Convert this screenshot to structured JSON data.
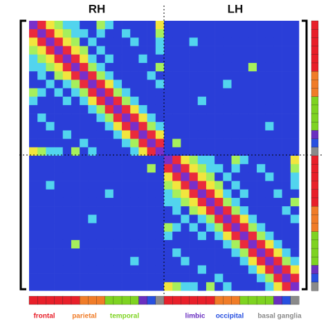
{
  "chart_data": {
    "type": "heatmap",
    "column_groups": [
      "RH",
      "LH"
    ],
    "zlim": [
      0,
      5
    ],
    "colorscale": [
      "#2a3ed8",
      "#52d4ee",
      "#a6ef5c",
      "#f2e53e",
      "#ea2a3c",
      "#7a2fc9"
    ],
    "regions": [
      {
        "name": "frontal",
        "color": "#e8202a"
      },
      {
        "name": "parietal",
        "color": "#f07c28"
      },
      {
        "name": "temporal",
        "color": "#7ed321"
      },
      {
        "name": "limbic",
        "color": "#6a2fc0"
      },
      {
        "name": "occipital",
        "color": "#2850e0"
      },
      {
        "name": "basal ganglia",
        "color": "#8a8a8a"
      }
    ],
    "node_regions": [
      0,
      0,
      0,
      0,
      0,
      0,
      1,
      1,
      1,
      2,
      2,
      2,
      2,
      3,
      4,
      5,
      0,
      0,
      0,
      0,
      0,
      0,
      1,
      1,
      1,
      2,
      2,
      2,
      2,
      3,
      4,
      5
    ],
    "values": [
      [
        5,
        4,
        3,
        2,
        1,
        1,
        0,
        0,
        2,
        1,
        0,
        0,
        0,
        0,
        0,
        3,
        0,
        0,
        0,
        0,
        0,
        0,
        0,
        0,
        0,
        0,
        0,
        0,
        0,
        0,
        0,
        0
      ],
      [
        4,
        5,
        4,
        3,
        2,
        1,
        1,
        0,
        1,
        0,
        0,
        1,
        0,
        0,
        0,
        2,
        0,
        0,
        0,
        0,
        0,
        0,
        0,
        0,
        0,
        0,
        0,
        0,
        0,
        0,
        0,
        0
      ],
      [
        3,
        4,
        5,
        4,
        3,
        2,
        0,
        1,
        0,
        0,
        0,
        0,
        1,
        0,
        0,
        1,
        0,
        0,
        0,
        1,
        0,
        0,
        0,
        0,
        0,
        0,
        0,
        0,
        0,
        0,
        0,
        0
      ],
      [
        2,
        3,
        4,
        5,
        4,
        3,
        2,
        0,
        1,
        0,
        0,
        0,
        0,
        0,
        0,
        1,
        0,
        0,
        0,
        0,
        0,
        0,
        0,
        0,
        0,
        0,
        0,
        0,
        0,
        0,
        0,
        0
      ],
      [
        1,
        2,
        3,
        4,
        5,
        4,
        3,
        1,
        0,
        1,
        0,
        0,
        0,
        1,
        0,
        0,
        0,
        0,
        0,
        0,
        0,
        0,
        0,
        0,
        0,
        0,
        0,
        0,
        0,
        0,
        0,
        0
      ],
      [
        1,
        1,
        2,
        3,
        4,
        5,
        4,
        2,
        1,
        0,
        0,
        0,
        0,
        0,
        0,
        2,
        0,
        0,
        0,
        0,
        0,
        0,
        0,
        0,
        0,
        0,
        2,
        0,
        0,
        0,
        0,
        0
      ],
      [
        0,
        1,
        0,
        2,
        3,
        4,
        5,
        4,
        2,
        1,
        0,
        0,
        0,
        0,
        1,
        0,
        0,
        0,
        0,
        0,
        0,
        0,
        0,
        0,
        0,
        0,
        0,
        0,
        0,
        0,
        0,
        0
      ],
      [
        0,
        0,
        1,
        0,
        1,
        2,
        4,
        5,
        4,
        3,
        1,
        0,
        0,
        0,
        0,
        1,
        0,
        0,
        0,
        0,
        0,
        0,
        0,
        1,
        0,
        0,
        0,
        0,
        0,
        0,
        0,
        0
      ],
      [
        2,
        1,
        0,
        1,
        0,
        1,
        2,
        4,
        5,
        4,
        2,
        1,
        0,
        0,
        0,
        0,
        0,
        0,
        0,
        0,
        0,
        0,
        0,
        0,
        0,
        0,
        0,
        0,
        0,
        0,
        0,
        0
      ],
      [
        1,
        0,
        0,
        0,
        1,
        0,
        1,
        3,
        4,
        5,
        4,
        2,
        1,
        0,
        0,
        0,
        0,
        0,
        0,
        0,
        1,
        0,
        0,
        0,
        0,
        0,
        0,
        0,
        0,
        0,
        0,
        0
      ],
      [
        0,
        0,
        0,
        0,
        0,
        0,
        0,
        1,
        2,
        4,
        5,
        4,
        3,
        1,
        0,
        0,
        0,
        0,
        0,
        0,
        0,
        0,
        0,
        0,
        0,
        0,
        0,
        0,
        0,
        0,
        0,
        0
      ],
      [
        0,
        1,
        0,
        0,
        0,
        0,
        0,
        0,
        1,
        2,
        4,
        5,
        4,
        3,
        1,
        0,
        0,
        0,
        0,
        0,
        0,
        0,
        0,
        0,
        0,
        0,
        0,
        0,
        0,
        0,
        0,
        0
      ],
      [
        0,
        0,
        1,
        0,
        0,
        0,
        0,
        0,
        0,
        1,
        3,
        4,
        5,
        4,
        2,
        1,
        0,
        0,
        0,
        0,
        0,
        0,
        0,
        0,
        0,
        0,
        0,
        0,
        1,
        0,
        0,
        0
      ],
      [
        0,
        0,
        0,
        0,
        1,
        0,
        0,
        0,
        0,
        0,
        1,
        3,
        4,
        5,
        4,
        3,
        0,
        0,
        0,
        0,
        0,
        0,
        0,
        0,
        0,
        0,
        0,
        0,
        0,
        0,
        0,
        0
      ],
      [
        0,
        0,
        0,
        0,
        0,
        0,
        1,
        0,
        0,
        0,
        0,
        1,
        2,
        4,
        5,
        4,
        0,
        2,
        0,
        0,
        0,
        0,
        0,
        0,
        0,
        0,
        0,
        0,
        0,
        0,
        0,
        0
      ],
      [
        3,
        2,
        1,
        1,
        0,
        2,
        0,
        1,
        0,
        0,
        0,
        0,
        1,
        3,
        4,
        5,
        0,
        0,
        0,
        0,
        0,
        0,
        0,
        0,
        0,
        0,
        0,
        0,
        0,
        0,
        0,
        0
      ],
      [
        0,
        0,
        0,
        0,
        0,
        0,
        0,
        0,
        0,
        0,
        0,
        0,
        0,
        0,
        0,
        0,
        5,
        4,
        3,
        2,
        1,
        1,
        0,
        0,
        2,
        1,
        0,
        0,
        0,
        0,
        0,
        3
      ],
      [
        0,
        0,
        0,
        0,
        0,
        0,
        0,
        0,
        0,
        0,
        0,
        0,
        0,
        0,
        2,
        0,
        4,
        5,
        4,
        3,
        2,
        1,
        1,
        0,
        1,
        0,
        0,
        1,
        0,
        0,
        0,
        2
      ],
      [
        0,
        0,
        0,
        0,
        0,
        0,
        0,
        0,
        0,
        0,
        0,
        0,
        0,
        0,
        0,
        0,
        3,
        4,
        5,
        4,
        3,
        2,
        0,
        1,
        0,
        0,
        0,
        0,
        1,
        0,
        0,
        1
      ],
      [
        0,
        0,
        1,
        0,
        0,
        0,
        0,
        0,
        0,
        0,
        0,
        0,
        0,
        0,
        0,
        0,
        2,
        3,
        4,
        5,
        4,
        3,
        2,
        0,
        1,
        0,
        0,
        0,
        0,
        0,
        0,
        1
      ],
      [
        0,
        0,
        0,
        0,
        0,
        0,
        0,
        0,
        0,
        1,
        0,
        0,
        0,
        0,
        0,
        0,
        1,
        2,
        3,
        4,
        5,
        4,
        3,
        1,
        0,
        1,
        0,
        0,
        0,
        1,
        0,
        0
      ],
      [
        0,
        0,
        0,
        0,
        0,
        0,
        0,
        0,
        0,
        0,
        0,
        0,
        0,
        0,
        0,
        0,
        1,
        1,
        2,
        3,
        4,
        5,
        4,
        2,
        1,
        0,
        0,
        0,
        0,
        0,
        0,
        2
      ],
      [
        0,
        0,
        0,
        0,
        0,
        0,
        0,
        0,
        0,
        0,
        0,
        0,
        0,
        0,
        0,
        0,
        0,
        1,
        0,
        2,
        3,
        4,
        5,
        4,
        2,
        1,
        0,
        0,
        0,
        0,
        1,
        0
      ],
      [
        0,
        0,
        0,
        0,
        0,
        0,
        0,
        1,
        0,
        0,
        0,
        0,
        0,
        0,
        0,
        0,
        0,
        0,
        1,
        0,
        1,
        2,
        4,
        5,
        4,
        3,
        1,
        0,
        0,
        0,
        0,
        1
      ],
      [
        0,
        0,
        0,
        0,
        0,
        0,
        0,
        0,
        0,
        0,
        0,
        0,
        0,
        0,
        0,
        0,
        2,
        1,
        0,
        1,
        0,
        1,
        2,
        4,
        5,
        4,
        2,
        1,
        0,
        0,
        0,
        0
      ],
      [
        0,
        0,
        0,
        0,
        0,
        0,
        0,
        0,
        0,
        0,
        0,
        0,
        0,
        0,
        0,
        0,
        1,
        0,
        0,
        0,
        1,
        0,
        1,
        3,
        4,
        5,
        4,
        2,
        1,
        0,
        0,
        0
      ],
      [
        0,
        0,
        0,
        0,
        0,
        2,
        0,
        0,
        0,
        0,
        0,
        0,
        0,
        0,
        0,
        0,
        0,
        0,
        0,
        0,
        0,
        0,
        0,
        1,
        2,
        4,
        5,
        4,
        3,
        1,
        0,
        0
      ],
      [
        0,
        0,
        0,
        0,
        0,
        0,
        0,
        0,
        0,
        0,
        0,
        0,
        0,
        0,
        0,
        0,
        0,
        1,
        0,
        0,
        0,
        0,
        0,
        0,
        1,
        2,
        4,
        5,
        4,
        3,
        1,
        0
      ],
      [
        0,
        0,
        0,
        0,
        0,
        0,
        0,
        0,
        0,
        0,
        0,
        0,
        1,
        0,
        0,
        0,
        0,
        0,
        1,
        0,
        0,
        0,
        0,
        0,
        0,
        1,
        3,
        4,
        5,
        4,
        2,
        1
      ],
      [
        0,
        0,
        0,
        0,
        0,
        0,
        0,
        0,
        0,
        0,
        0,
        0,
        0,
        0,
        0,
        0,
        0,
        0,
        0,
        0,
        1,
        0,
        0,
        0,
        0,
        0,
        1,
        3,
        4,
        5,
        4,
        3
      ],
      [
        0,
        0,
        0,
        0,
        0,
        0,
        0,
        0,
        0,
        0,
        0,
        0,
        0,
        0,
        0,
        0,
        0,
        0,
        0,
        0,
        0,
        0,
        1,
        0,
        0,
        0,
        0,
        1,
        2,
        4,
        5,
        4
      ],
      [
        0,
        0,
        0,
        0,
        0,
        0,
        0,
        0,
        0,
        0,
        0,
        0,
        0,
        0,
        0,
        0,
        3,
        2,
        1,
        1,
        0,
        2,
        0,
        1,
        0,
        0,
        0,
        0,
        1,
        3,
        4,
        5
      ]
    ]
  }
}
